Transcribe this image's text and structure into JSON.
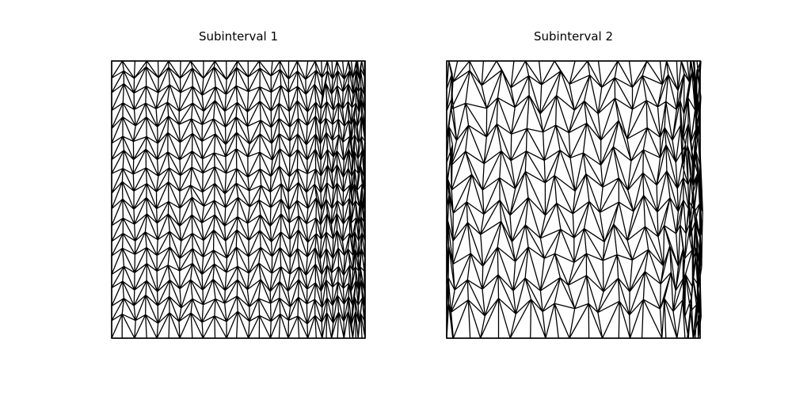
{
  "panels": [
    {
      "title": "Subinterval 1"
    },
    {
      "title": "Subinterval 2"
    }
  ]
}
